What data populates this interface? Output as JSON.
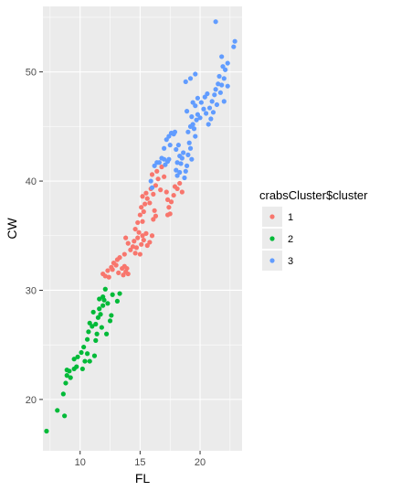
{
  "chart_data": {
    "type": "scatter",
    "xlabel": "FL",
    "ylabel": "CW",
    "xlim": [
      6.9,
      23.5
    ],
    "ylim": [
      15.3,
      56.0
    ],
    "x_ticks": [
      10,
      15,
      20
    ],
    "y_ticks": [
      20,
      30,
      40,
      50
    ],
    "grid": true,
    "legend_title": "crabsCluster$cluster",
    "legend_placement": "right",
    "panel_color": "#ebebeb",
    "series": [
      {
        "name": "1",
        "color": "#f8766d",
        "points": [
          [
            11.9,
            31.5
          ],
          [
            12.1,
            31.3
          ],
          [
            12.3,
            31.8
          ],
          [
            12.4,
            31.2
          ],
          [
            12.6,
            32.1
          ],
          [
            12.7,
            31.9
          ],
          [
            12.8,
            32.5
          ],
          [
            13.0,
            32.3
          ],
          [
            13.1,
            32.8
          ],
          [
            13.2,
            31.6
          ],
          [
            13.3,
            33.0
          ],
          [
            13.5,
            32.0
          ],
          [
            13.6,
            31.4
          ],
          [
            13.7,
            32.2
          ],
          [
            13.8,
            31.7
          ],
          [
            13.9,
            32.0
          ],
          [
            14.0,
            31.5
          ],
          [
            13.7,
            33.3
          ],
          [
            13.8,
            34.8
          ],
          [
            14.0,
            34.3
          ],
          [
            14.2,
            33.7
          ],
          [
            14.4,
            34.0
          ],
          [
            14.5,
            34.5
          ],
          [
            14.6,
            33.4
          ],
          [
            14.7,
            33.9
          ],
          [
            14.8,
            34.8
          ],
          [
            14.9,
            35.3
          ],
          [
            15.0,
            33.3
          ],
          [
            15.1,
            34.2
          ],
          [
            15.2,
            35.0
          ],
          [
            15.3,
            34.6
          ],
          [
            15.5,
            35.2
          ],
          [
            15.6,
            34.1
          ],
          [
            15.8,
            34.4
          ],
          [
            16.0,
            35.0
          ],
          [
            14.6,
            35.6
          ],
          [
            14.8,
            36.2
          ],
          [
            15.0,
            36.9
          ],
          [
            15.2,
            36.3
          ],
          [
            15.3,
            37.2
          ],
          [
            15.1,
            37.6
          ],
          [
            15.4,
            37.9
          ],
          [
            15.6,
            38.4
          ],
          [
            15.8,
            38.0
          ],
          [
            15.2,
            38.6
          ],
          [
            15.5,
            38.9
          ],
          [
            15.9,
            39.3
          ],
          [
            16.1,
            38.8
          ],
          [
            16.3,
            39.6
          ],
          [
            16.5,
            40.2
          ],
          [
            16.7,
            39.2
          ],
          [
            16.0,
            40.6
          ],
          [
            16.4,
            40.9
          ],
          [
            16.8,
            41.3
          ],
          [
            17.0,
            40.4
          ],
          [
            17.2,
            39.0
          ],
          [
            17.3,
            38.3
          ],
          [
            17.4,
            37.6
          ],
          [
            17.5,
            37.0
          ],
          [
            17.3,
            36.9
          ],
          [
            17.6,
            38.1
          ],
          [
            17.8,
            38.7
          ],
          [
            17.9,
            39.5
          ],
          [
            18.1,
            39.3
          ],
          [
            18.3,
            39.8
          ],
          [
            18.5,
            39.0
          ],
          [
            16.1,
            36.5
          ],
          [
            16.2,
            37.3
          ],
          [
            16.3,
            36.8
          ]
        ]
      },
      {
        "name": "2",
        "color": "#00ba38",
        "points": [
          [
            7.2,
            17.1
          ],
          [
            8.1,
            19.0
          ],
          [
            8.7,
            18.5
          ],
          [
            8.6,
            20.5
          ],
          [
            8.8,
            21.5
          ],
          [
            8.9,
            22.2
          ],
          [
            8.9,
            22.7
          ],
          [
            9.1,
            22.6
          ],
          [
            9.2,
            22.0
          ],
          [
            9.5,
            22.8
          ],
          [
            9.7,
            23.0
          ],
          [
            9.5,
            23.7
          ],
          [
            9.8,
            23.9
          ],
          [
            10.1,
            24.3
          ],
          [
            10.3,
            24.8
          ],
          [
            10.2,
            22.8
          ],
          [
            10.8,
            23.5
          ],
          [
            11.2,
            24.0
          ],
          [
            10.6,
            25.5
          ],
          [
            10.7,
            26.2
          ],
          [
            10.8,
            27.0
          ],
          [
            11.0,
            26.7
          ],
          [
            11.3,
            25.4
          ],
          [
            11.4,
            26.0
          ],
          [
            11.5,
            27.5
          ],
          [
            11.1,
            28.0
          ],
          [
            11.6,
            28.3
          ],
          [
            11.7,
            27.8
          ],
          [
            11.9,
            28.6
          ],
          [
            12.0,
            29.1
          ],
          [
            11.9,
            29.4
          ],
          [
            12.1,
            30.1
          ],
          [
            11.6,
            29.2
          ],
          [
            11.8,
            26.6
          ],
          [
            12.2,
            26.0
          ],
          [
            12.3,
            28.8
          ],
          [
            12.5,
            27.2
          ],
          [
            12.6,
            27.7
          ],
          [
            12.7,
            29.6
          ],
          [
            13.1,
            29.0
          ],
          [
            13.3,
            29.7
          ],
          [
            11.3,
            26.9
          ],
          [
            10.4,
            23.5
          ],
          [
            10.6,
            24.2
          ]
        ]
      },
      {
        "name": "3",
        "color": "#619cff",
        "points": [
          [
            15.9,
            40.0
          ],
          [
            16.0,
            39.4
          ],
          [
            16.2,
            41.4
          ],
          [
            16.4,
            41.7
          ],
          [
            16.6,
            41.7
          ],
          [
            16.8,
            42.1
          ],
          [
            17.0,
            42.0
          ],
          [
            17.1,
            41.5
          ],
          [
            17.3,
            41.8
          ],
          [
            17.4,
            42.0
          ],
          [
            17.0,
            43.0
          ],
          [
            17.2,
            43.8
          ],
          [
            17.4,
            44.1
          ],
          [
            17.6,
            44.4
          ],
          [
            17.5,
            43.3
          ],
          [
            17.8,
            44.3
          ],
          [
            17.9,
            44.5
          ],
          [
            18.0,
            42.9
          ],
          [
            18.2,
            43.3
          ],
          [
            18.3,
            42.3
          ],
          [
            18.1,
            41.7
          ],
          [
            18.0,
            41.0
          ],
          [
            18.1,
            40.5
          ],
          [
            18.3,
            40.8
          ],
          [
            18.4,
            41.6
          ],
          [
            18.5,
            42.1
          ],
          [
            18.6,
            42.6
          ],
          [
            18.7,
            40.3
          ],
          [
            18.8,
            40.9
          ],
          [
            18.9,
            41.4
          ],
          [
            19.0,
            42.4
          ],
          [
            19.1,
            43.5
          ],
          [
            19.2,
            43.0
          ],
          [
            19.3,
            42.0
          ],
          [
            19.0,
            44.5
          ],
          [
            19.2,
            45.0
          ],
          [
            19.4,
            45.2
          ],
          [
            19.5,
            44.8
          ],
          [
            19.7,
            45.6
          ],
          [
            19.8,
            46.1
          ],
          [
            20.0,
            45.8
          ],
          [
            19.6,
            44.1
          ],
          [
            19.3,
            45.9
          ],
          [
            18.9,
            46.4
          ],
          [
            19.6,
            46.9
          ],
          [
            20.1,
            47.2
          ],
          [
            20.3,
            46.6
          ],
          [
            20.4,
            47.7
          ],
          [
            20.6,
            48.0
          ],
          [
            20.8,
            46.7
          ],
          [
            21.0,
            47.3
          ],
          [
            21.2,
            47.9
          ],
          [
            21.3,
            48.4
          ],
          [
            21.4,
            47.0
          ],
          [
            21.1,
            46.3
          ],
          [
            20.7,
            45.2
          ],
          [
            20.9,
            45.7
          ],
          [
            21.5,
            48.9
          ],
          [
            21.7,
            48.1
          ],
          [
            21.6,
            49.6
          ],
          [
            21.8,
            48.8
          ],
          [
            22.0,
            49.4
          ],
          [
            22.3,
            48.7
          ],
          [
            22.0,
            47.3
          ],
          [
            21.9,
            50.5
          ],
          [
            21.8,
            51.4
          ],
          [
            22.1,
            50.2
          ],
          [
            22.3,
            50.8
          ],
          [
            21.3,
            54.6
          ],
          [
            22.8,
            52.3
          ],
          [
            22.9,
            52.8
          ],
          [
            19.6,
            49.8
          ],
          [
            19.2,
            49.4
          ],
          [
            18.8,
            49.1
          ],
          [
            19.4,
            47.2
          ],
          [
            19.8,
            47.6
          ],
          [
            20.5,
            46.2
          ]
        ]
      }
    ]
  }
}
